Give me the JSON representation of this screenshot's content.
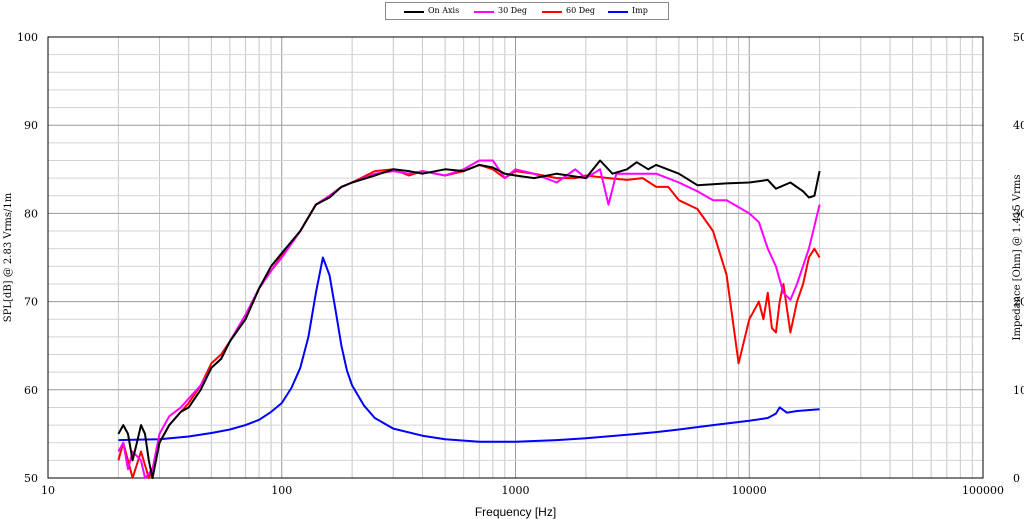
{
  "chart_data": {
    "type": "line",
    "xlabel": "Frequency [Hz]",
    "ylabel": "SPL[dB] @ 2.83 Vrms/1m",
    "y2label": "Impedance [Ohm] @ 1.415 Vrms",
    "xscale": "log",
    "xlim": [
      10,
      100000
    ],
    "ylim": [
      50,
      100
    ],
    "y2lim": [
      0,
      50
    ],
    "grid": true,
    "legend_position": "top-center",
    "x_tick_labels": [
      "10",
      "100",
      "1000",
      "10000",
      "100000"
    ],
    "y_tick_labels": [
      "50",
      "60",
      "70",
      "80",
      "90",
      "100"
    ],
    "y2_tick_labels": [
      "0",
      "10",
      "20",
      "30",
      "40",
      "50"
    ],
    "series": [
      {
        "name": "On Axis",
        "color": "#000000",
        "axis": "left",
        "points": [
          [
            20,
            55
          ],
          [
            21,
            56
          ],
          [
            22,
            55
          ],
          [
            23,
            52
          ],
          [
            24,
            54
          ],
          [
            25,
            56
          ],
          [
            26,
            55
          ],
          [
            27,
            52
          ],
          [
            28,
            50
          ],
          [
            30,
            54
          ],
          [
            33,
            56
          ],
          [
            37,
            57.5
          ],
          [
            40,
            58
          ],
          [
            45,
            60
          ],
          [
            50,
            62.5
          ],
          [
            55,
            63.5
          ],
          [
            60,
            65.5
          ],
          [
            70,
            68
          ],
          [
            80,
            71.5
          ],
          [
            90,
            74
          ],
          [
            100,
            75.5
          ],
          [
            120,
            78
          ],
          [
            140,
            81
          ],
          [
            160,
            81.8
          ],
          [
            180,
            83
          ],
          [
            200,
            83.5
          ],
          [
            250,
            84.3
          ],
          [
            300,
            85
          ],
          [
            350,
            84.8
          ],
          [
            400,
            84.5
          ],
          [
            500,
            85
          ],
          [
            600,
            84.8
          ],
          [
            700,
            85.5
          ],
          [
            800,
            85.2
          ],
          [
            900,
            84.5
          ],
          [
            1000,
            84.3
          ],
          [
            1200,
            84
          ],
          [
            1500,
            84.5
          ],
          [
            2000,
            84
          ],
          [
            2300,
            86
          ],
          [
            2600,
            84.5
          ],
          [
            3000,
            85
          ],
          [
            3300,
            85.8
          ],
          [
            3700,
            85
          ],
          [
            4000,
            85.5
          ],
          [
            5000,
            84.5
          ],
          [
            6000,
            83.2
          ],
          [
            7000,
            83.3
          ],
          [
            8000,
            83.4
          ],
          [
            10000,
            83.5
          ],
          [
            12000,
            83.8
          ],
          [
            13000,
            82.8
          ],
          [
            15000,
            83.5
          ],
          [
            17000,
            82.5
          ],
          [
            18000,
            81.8
          ],
          [
            19000,
            82
          ],
          [
            20000,
            84.8
          ]
        ]
      },
      {
        "name": "30 Deg",
        "color": "#ff00ff",
        "axis": "left",
        "points": [
          [
            20,
            53
          ],
          [
            21,
            54
          ],
          [
            22,
            51
          ],
          [
            23,
            53
          ],
          [
            25,
            52
          ],
          [
            26,
            50
          ],
          [
            28,
            51
          ],
          [
            30,
            55
          ],
          [
            33,
            57
          ],
          [
            37,
            58
          ],
          [
            40,
            59
          ],
          [
            45,
            60.5
          ],
          [
            50,
            62.5
          ],
          [
            55,
            63.5
          ],
          [
            60,
            65.5
          ],
          [
            70,
            68.5
          ],
          [
            80,
            71.5
          ],
          [
            90,
            73.5
          ],
          [
            100,
            75
          ],
          [
            120,
            78
          ],
          [
            140,
            81
          ],
          [
            160,
            82
          ],
          [
            180,
            83
          ],
          [
            200,
            83.5
          ],
          [
            250,
            84.5
          ],
          [
            300,
            84.8
          ],
          [
            350,
            84.5
          ],
          [
            400,
            84.8
          ],
          [
            500,
            84.3
          ],
          [
            600,
            85
          ],
          [
            700,
            86
          ],
          [
            800,
            86
          ],
          [
            900,
            84
          ],
          [
            1000,
            85
          ],
          [
            1200,
            84.5
          ],
          [
            1500,
            83.5
          ],
          [
            1800,
            85
          ],
          [
            2000,
            84
          ],
          [
            2300,
            85
          ],
          [
            2500,
            81
          ],
          [
            2700,
            84.5
          ],
          [
            3000,
            84.5
          ],
          [
            3500,
            84.5
          ],
          [
            4000,
            84.5
          ],
          [
            5000,
            83.5
          ],
          [
            6000,
            82.5
          ],
          [
            7000,
            81.5
          ],
          [
            8000,
            81.5
          ],
          [
            10000,
            80
          ],
          [
            11000,
            79
          ],
          [
            12000,
            76
          ],
          [
            13000,
            74
          ],
          [
            14000,
            71
          ],
          [
            15000,
            70.2
          ],
          [
            16000,
            72
          ],
          [
            18000,
            76
          ],
          [
            20000,
            81
          ]
        ]
      },
      {
        "name": "60 Deg",
        "color": "#ff0000",
        "axis": "left",
        "points": [
          [
            20,
            52
          ],
          [
            21,
            54
          ],
          [
            22,
            52
          ],
          [
            23,
            50
          ],
          [
            25,
            53
          ],
          [
            27,
            50
          ],
          [
            28,
            51
          ],
          [
            30,
            54
          ],
          [
            33,
            56
          ],
          [
            37,
            57.5
          ],
          [
            40,
            58.5
          ],
          [
            45,
            60.5
          ],
          [
            50,
            63
          ],
          [
            55,
            64
          ],
          [
            60,
            65.5
          ],
          [
            70,
            68
          ],
          [
            80,
            71.5
          ],
          [
            90,
            73.5
          ],
          [
            100,
            75.2
          ],
          [
            120,
            78
          ],
          [
            140,
            81
          ],
          [
            160,
            82
          ],
          [
            180,
            83
          ],
          [
            200,
            83.5
          ],
          [
            250,
            84.8
          ],
          [
            300,
            85
          ],
          [
            350,
            84.3
          ],
          [
            400,
            84.8
          ],
          [
            500,
            84.3
          ],
          [
            600,
            84.8
          ],
          [
            700,
            85.5
          ],
          [
            800,
            85
          ],
          [
            900,
            84
          ],
          [
            1000,
            84.8
          ],
          [
            1200,
            84.5
          ],
          [
            1500,
            84
          ],
          [
            1800,
            84
          ],
          [
            2000,
            84.3
          ],
          [
            2500,
            84
          ],
          [
            3000,
            83.8
          ],
          [
            3500,
            84
          ],
          [
            4000,
            83
          ],
          [
            4500,
            83
          ],
          [
            5000,
            81.5
          ],
          [
            6000,
            80.5
          ],
          [
            7000,
            78
          ],
          [
            8000,
            73
          ],
          [
            9000,
            63
          ],
          [
            10000,
            68
          ],
          [
            11000,
            70
          ],
          [
            11500,
            68
          ],
          [
            12000,
            71
          ],
          [
            12500,
            67
          ],
          [
            13000,
            66.5
          ],
          [
            13500,
            70
          ],
          [
            14000,
            72
          ],
          [
            15000,
            66.5
          ],
          [
            16000,
            70
          ],
          [
            17000,
            72
          ],
          [
            18000,
            75
          ],
          [
            19000,
            76
          ],
          [
            20000,
            75
          ]
        ]
      },
      {
        "name": "Imp",
        "color": "#0000ff",
        "axis": "right",
        "points": [
          [
            20,
            4.3
          ],
          [
            30,
            4.4
          ],
          [
            40,
            4.7
          ],
          [
            50,
            5.1
          ],
          [
            60,
            5.5
          ],
          [
            70,
            6
          ],
          [
            80,
            6.6
          ],
          [
            90,
            7.5
          ],
          [
            100,
            8.5
          ],
          [
            110,
            10.2
          ],
          [
            120,
            12.5
          ],
          [
            130,
            16
          ],
          [
            140,
            21
          ],
          [
            150,
            25
          ],
          [
            160,
            23
          ],
          [
            170,
            19
          ],
          [
            180,
            15
          ],
          [
            190,
            12.2
          ],
          [
            200,
            10.5
          ],
          [
            225,
            8.2
          ],
          [
            250,
            6.8
          ],
          [
            300,
            5.6
          ],
          [
            400,
            4.8
          ],
          [
            500,
            4.4
          ],
          [
            700,
            4.1
          ],
          [
            1000,
            4.1
          ],
          [
            1500,
            4.3
          ],
          [
            2000,
            4.5
          ],
          [
            3000,
            4.9
          ],
          [
            4000,
            5.2
          ],
          [
            5000,
            5.5
          ],
          [
            7000,
            6
          ],
          [
            10000,
            6.5
          ],
          [
            12000,
            6.8
          ],
          [
            13000,
            7.3
          ],
          [
            13500,
            8
          ],
          [
            14500,
            7.4
          ],
          [
            16000,
            7.6
          ],
          [
            20000,
            7.8
          ]
        ]
      }
    ]
  }
}
